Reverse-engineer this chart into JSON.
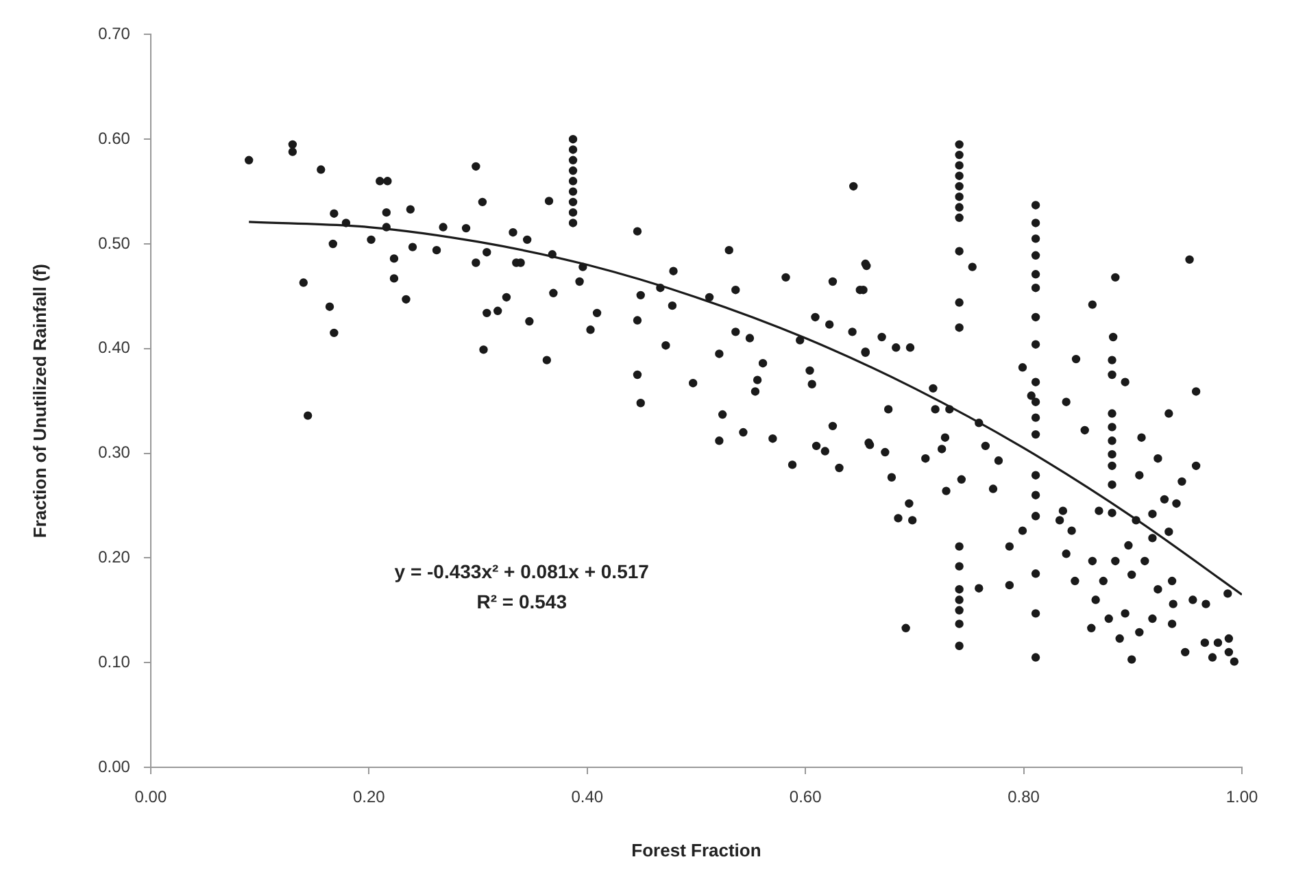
{
  "chart_data": {
    "type": "scatter",
    "xlabel": "Forest Fraction",
    "ylabel": "Fraction of Unutilized Rainfall (f)",
    "xlim": [
      0,
      1
    ],
    "ylim": [
      0,
      0.7
    ],
    "xticks": [
      {
        "value": 0,
        "label": "0.00"
      },
      {
        "value": 0.2,
        "label": "0.20"
      },
      {
        "value": 0.4,
        "label": "0.40"
      },
      {
        "value": 0.6,
        "label": "0.60"
      },
      {
        "value": 0.8,
        "label": "0.80"
      },
      {
        "value": 1,
        "label": "1.00"
      }
    ],
    "yticks": [
      {
        "value": 0,
        "label": "0.00"
      },
      {
        "value": 0.1,
        "label": "0.10"
      },
      {
        "value": 0.2,
        "label": "0.20"
      },
      {
        "value": 0.3,
        "label": "0.30"
      },
      {
        "value": 0.4,
        "label": "0.40"
      },
      {
        "value": 0.5,
        "label": "0.50"
      },
      {
        "value": 0.6,
        "label": "0.60"
      },
      {
        "value": 0.7,
        "label": "0.70"
      }
    ],
    "grid": false,
    "legend": false,
    "marker": "circle",
    "annotations": [
      "y = -0.433x² + 0.081x + 0.517",
      "R² = 0.543"
    ],
    "series": [
      {
        "type": "scatter",
        "color": "#1a1a1a",
        "x": [
          0.09,
          0.13,
          0.13,
          0.156,
          0.21,
          0.217,
          0.168,
          0.179,
          0.216,
          0.238,
          0.216,
          0.167,
          0.202,
          0.223,
          0.24,
          0.262,
          0.268,
          0.289,
          0.298,
          0.304,
          0.298,
          0.308,
          0.332,
          0.335,
          0.14,
          0.164,
          0.168,
          0.223,
          0.234,
          0.326,
          0.308,
          0.318,
          0.305,
          0.144,
          0.387,
          0.387,
          0.387,
          0.387,
          0.387,
          0.387,
          0.387,
          0.387,
          0.387,
          0.365,
          0.345,
          0.339,
          0.368,
          0.396,
          0.393,
          0.369,
          0.347,
          0.363,
          0.409,
          0.403,
          0.446,
          0.449,
          0.446,
          0.472,
          0.479,
          0.467,
          0.478,
          0.446,
          0.449,
          0.497,
          0.512,
          0.53,
          0.536,
          0.536,
          0.549,
          0.521,
          0.561,
          0.556,
          0.554,
          0.524,
          0.521,
          0.543,
          0.57,
          0.582,
          0.595,
          0.609,
          0.604,
          0.606,
          0.588,
          0.61,
          0.618,
          0.625,
          0.631,
          0.625,
          0.622,
          0.643,
          0.644,
          0.655,
          0.65,
          0.655,
          0.659,
          0.656,
          0.653,
          0.67,
          0.683,
          0.696,
          0.655,
          0.676,
          0.658,
          0.673,
          0.679,
          0.71,
          0.725,
          0.728,
          0.729,
          0.743,
          0.695,
          0.685,
          0.698,
          0.692,
          0.741,
          0.741,
          0.741,
          0.741,
          0.741,
          0.741,
          0.741,
          0.741,
          0.741,
          0.741,
          0.741,
          0.717,
          0.719,
          0.732,
          0.741,
          0.741,
          0.741,
          0.741,
          0.741,
          0.741,
          0.741,
          0.753,
          0.759,
          0.765,
          0.777,
          0.772,
          0.759,
          0.787,
          0.787,
          0.811,
          0.811,
          0.811,
          0.811,
          0.811,
          0.811,
          0.811,
          0.811,
          0.811,
          0.811,
          0.811,
          0.811,
          0.811,
          0.811,
          0.811,
          0.811,
          0.811,
          0.811,
          0.799,
          0.807,
          0.799,
          0.839,
          0.848,
          0.856,
          0.836,
          0.833,
          0.844,
          0.839,
          0.847,
          0.884,
          0.863,
          0.882,
          0.881,
          0.881,
          0.881,
          0.881,
          0.881,
          0.881,
          0.881,
          0.881,
          0.881,
          0.869,
          0.893,
          0.908,
          0.923,
          0.906,
          0.933,
          0.958,
          0.958,
          0.952,
          0.945,
          0.94,
          0.929,
          0.933,
          0.918,
          0.918,
          0.903,
          0.896,
          0.911,
          0.899,
          0.884,
          0.863,
          0.873,
          0.866,
          0.878,
          0.862,
          0.893,
          0.888,
          0.899,
          0.906,
          0.918,
          0.923,
          0.936,
          0.937,
          0.936,
          0.948,
          0.955,
          0.967,
          0.966,
          0.978,
          0.988,
          0.988,
          0.973,
          0.993,
          0.987
        ],
        "values": [
          0.58,
          0.595,
          0.588,
          0.571,
          0.56,
          0.56,
          0.529,
          0.52,
          0.53,
          0.533,
          0.516,
          0.5,
          0.504,
          0.486,
          0.497,
          0.494,
          0.516,
          0.515,
          0.574,
          0.54,
          0.482,
          0.492,
          0.511,
          0.482,
          0.463,
          0.44,
          0.415,
          0.467,
          0.447,
          0.449,
          0.434,
          0.436,
          0.399,
          0.336,
          0.6,
          0.59,
          0.58,
          0.57,
          0.56,
          0.55,
          0.54,
          0.53,
          0.52,
          0.541,
          0.504,
          0.482,
          0.49,
          0.478,
          0.464,
          0.453,
          0.426,
          0.389,
          0.434,
          0.418,
          0.512,
          0.451,
          0.427,
          0.403,
          0.474,
          0.458,
          0.441,
          0.375,
          0.348,
          0.367,
          0.449,
          0.494,
          0.456,
          0.416,
          0.41,
          0.395,
          0.386,
          0.37,
          0.359,
          0.337,
          0.312,
          0.32,
          0.314,
          0.468,
          0.408,
          0.43,
          0.379,
          0.366,
          0.289,
          0.307,
          0.302,
          0.326,
          0.286,
          0.464,
          0.423,
          0.416,
          0.555,
          0.481,
          0.456,
          0.397,
          0.308,
          0.479,
          0.456,
          0.411,
          0.401,
          0.401,
          0.396,
          0.342,
          0.31,
          0.301,
          0.277,
          0.295,
          0.304,
          0.315,
          0.264,
          0.275,
          0.252,
          0.238,
          0.236,
          0.133,
          0.595,
          0.585,
          0.575,
          0.565,
          0.555,
          0.545,
          0.535,
          0.525,
          0.493,
          0.444,
          0.42,
          0.362,
          0.342,
          0.342,
          0.211,
          0.192,
          0.17,
          0.16,
          0.15,
          0.137,
          0.116,
          0.478,
          0.329,
          0.307,
          0.293,
          0.266,
          0.171,
          0.174,
          0.211,
          0.537,
          0.52,
          0.505,
          0.489,
          0.471,
          0.458,
          0.43,
          0.404,
          0.368,
          0.349,
          0.334,
          0.318,
          0.279,
          0.26,
          0.24,
          0.185,
          0.147,
          0.105,
          0.382,
          0.355,
          0.226,
          0.349,
          0.39,
          0.322,
          0.245,
          0.236,
          0.226,
          0.204,
          0.178,
          0.468,
          0.442,
          0.411,
          0.389,
          0.375,
          0.338,
          0.325,
          0.312,
          0.299,
          0.288,
          0.27,
          0.243,
          0.245,
          0.368,
          0.315,
          0.295,
          0.279,
          0.338,
          0.359,
          0.288,
          0.485,
          0.273,
          0.252,
          0.256,
          0.225,
          0.242,
          0.219,
          0.236,
          0.212,
          0.197,
          0.184,
          0.197,
          0.197,
          0.178,
          0.16,
          0.142,
          0.133,
          0.147,
          0.123,
          0.103,
          0.129,
          0.142,
          0.17,
          0.178,
          0.156,
          0.137,
          0.11,
          0.16,
          0.156,
          0.119,
          0.119,
          0.123,
          0.11,
          0.105,
          0.101,
          0.166
        ]
      },
      {
        "type": "line",
        "color": "#1a1a1a",
        "marker": "none",
        "x": [
          0.09,
          0.2,
          0.3,
          0.4,
          0.5,
          0.6,
          0.7,
          0.8,
          0.9,
          1.0
        ],
        "values": [
          0.521,
          0.516,
          0.502,
          0.48,
          0.449,
          0.41,
          0.362,
          0.305,
          0.239,
          0.165
        ]
      }
    ]
  }
}
